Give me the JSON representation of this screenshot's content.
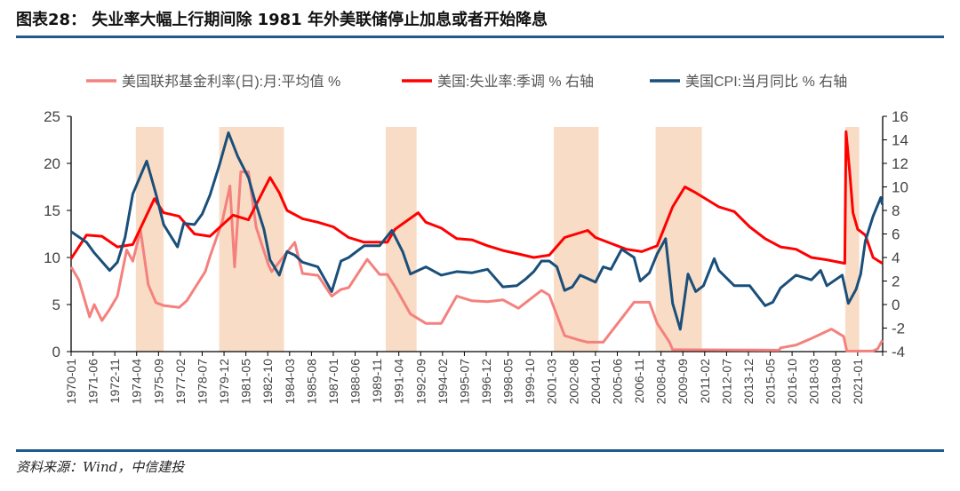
{
  "title": "图表28： 失业率大幅上行期间除 1981 年外美联储停止加息或者开始降息",
  "source": "资料来源：Wind，中信建投",
  "chart_data": {
    "type": "line",
    "title": "图表28： 失业率大幅上行期间除 1981 年外美联储停止加息或者开始降息",
    "x_range": [
      1970.0,
      2022.6
    ],
    "x_tick_labels": [
      "1970-01",
      "1971-06",
      "1972-11",
      "1974-04",
      "1975-09",
      "1977-02",
      "1978-07",
      "1979-12",
      "1981-05",
      "1982-10",
      "1984-03",
      "1985-08",
      "1987-01",
      "1988-06",
      "1989-11",
      "1991-04",
      "1992-09",
      "1994-02",
      "1995-07",
      "1996-12",
      "1998-05",
      "1999-10",
      "2001-03",
      "2002-08",
      "2004-01",
      "2005-06",
      "2006-11",
      "2008-04",
      "2009-09",
      "2011-02",
      "2012-07",
      "2013-12",
      "2015-05",
      "2016-10",
      "2018-03",
      "2019-08",
      "2021-01"
    ],
    "left_axis": {
      "ylim": [
        0,
        25
      ],
      "ticks": [
        "0",
        "5",
        "10",
        "15",
        "20",
        "25"
      ]
    },
    "right_axis": {
      "ylim": [
        -4,
        16
      ],
      "ticks": [
        "-4",
        "-2",
        "0",
        "2",
        "4",
        "6",
        "8",
        "10",
        "12",
        "14",
        "16"
      ]
    },
    "legend_position": "top-center",
    "shaded_periods": [
      [
        1974.2,
        1976.0
      ],
      [
        1979.6,
        1983.8
      ],
      [
        1990.4,
        1992.4
      ],
      [
        2001.3,
        2004.2
      ],
      [
        2007.9,
        2010.9
      ],
      [
        2020.2,
        2021.1
      ]
    ],
    "shade_color": "#f8dcc6",
    "series": [
      {
        "name": "美国联邦基金利率(日):月:平均值 %",
        "axis": "left",
        "color": "#f4817d",
        "points": [
          [
            1970,
            9.0
          ],
          [
            1970.5,
            7.6
          ],
          [
            1971.2,
            3.7
          ],
          [
            1971.5,
            5.0
          ],
          [
            1972,
            3.3
          ],
          [
            1972.5,
            4.5
          ],
          [
            1973,
            5.9
          ],
          [
            1973.6,
            10.8
          ],
          [
            1974,
            9.6
          ],
          [
            1974.5,
            12.9
          ],
          [
            1975,
            7.1
          ],
          [
            1975.5,
            5.2
          ],
          [
            1976,
            4.9
          ],
          [
            1977,
            4.7
          ],
          [
            1977.5,
            5.4
          ],
          [
            1978,
            6.7
          ],
          [
            1978.7,
            8.5
          ],
          [
            1979,
            10.1
          ],
          [
            1979.8,
            13.8
          ],
          [
            1980.3,
            17.6
          ],
          [
            1980.6,
            9.0
          ],
          [
            1981,
            19.1
          ],
          [
            1981.5,
            19.1
          ],
          [
            1982,
            13.2
          ],
          [
            1982.8,
            9.2
          ],
          [
            1983,
            8.5
          ],
          [
            1984.5,
            11.6
          ],
          [
            1985,
            8.3
          ],
          [
            1986,
            8.1
          ],
          [
            1986.9,
            5.9
          ],
          [
            1987.5,
            6.6
          ],
          [
            1988,
            6.8
          ],
          [
            1989.2,
            9.8
          ],
          [
            1990,
            8.2
          ],
          [
            1990.5,
            8.2
          ],
          [
            1991,
            6.9
          ],
          [
            1992,
            4.0
          ],
          [
            1993,
            3.0
          ],
          [
            1994,
            3.0
          ],
          [
            1995,
            5.9
          ],
          [
            1996,
            5.4
          ],
          [
            1997,
            5.3
          ],
          [
            1998,
            5.5
          ],
          [
            1999,
            4.6
          ],
          [
            2000.5,
            6.5
          ],
          [
            2001,
            6.0
          ],
          [
            2002,
            1.7
          ],
          [
            2003,
            1.2
          ],
          [
            2003.5,
            1.0
          ],
          [
            2004.5,
            1.0
          ],
          [
            2006.5,
            5.25
          ],
          [
            2007.5,
            5.25
          ],
          [
            2008,
            3.0
          ],
          [
            2008.8,
            1.0
          ],
          [
            2009,
            0.2
          ],
          [
            2015.9,
            0.15
          ],
          [
            2016,
            0.4
          ],
          [
            2017,
            0.7
          ],
          [
            2018,
            1.4
          ],
          [
            2019.3,
            2.4
          ],
          [
            2019.7,
            2.0
          ],
          [
            2020.1,
            1.6
          ],
          [
            2020.3,
            0.05
          ],
          [
            2022,
            0.08
          ],
          [
            2022.3,
            0.3
          ],
          [
            2022.6,
            1.2
          ]
        ]
      },
      {
        "name": "美国:失业率:季调 % 右轴",
        "axis": "right",
        "color": "#ff0000",
        "points": [
          [
            1970,
            3.9
          ],
          [
            1971,
            5.9
          ],
          [
            1972,
            5.8
          ],
          [
            1973,
            4.9
          ],
          [
            1974,
            5.1
          ],
          [
            1975.4,
            9.0
          ],
          [
            1976,
            7.8
          ],
          [
            1977,
            7.5
          ],
          [
            1978,
            6.0
          ],
          [
            1979,
            5.8
          ],
          [
            1980.5,
            7.6
          ],
          [
            1981.5,
            7.2
          ],
          [
            1982.9,
            10.8
          ],
          [
            1983.5,
            9.5
          ],
          [
            1984,
            8.0
          ],
          [
            1985,
            7.3
          ],
          [
            1986,
            7.0
          ],
          [
            1987,
            6.6
          ],
          [
            1988,
            5.7
          ],
          [
            1989,
            5.3
          ],
          [
            1990.5,
            5.3
          ],
          [
            1991,
            6.4
          ],
          [
            1992.5,
            7.8
          ],
          [
            1993,
            7.0
          ],
          [
            1994,
            6.5
          ],
          [
            1995,
            5.6
          ],
          [
            1996,
            5.5
          ],
          [
            1997,
            5.0
          ],
          [
            1998,
            4.6
          ],
          [
            1999,
            4.3
          ],
          [
            2000,
            4.0
          ],
          [
            2001,
            4.2
          ],
          [
            2002,
            5.7
          ],
          [
            2003.5,
            6.3
          ],
          [
            2004,
            5.7
          ],
          [
            2005,
            5.2
          ],
          [
            2006,
            4.7
          ],
          [
            2007,
            4.5
          ],
          [
            2008,
            5.0
          ],
          [
            2009,
            8.3
          ],
          [
            2009.8,
            10.0
          ],
          [
            2010.5,
            9.5
          ],
          [
            2011,
            9.1
          ],
          [
            2012,
            8.3
          ],
          [
            2013,
            7.9
          ],
          [
            2014,
            6.6
          ],
          [
            2015,
            5.6
          ],
          [
            2016,
            4.9
          ],
          [
            2017,
            4.7
          ],
          [
            2018,
            4.0
          ],
          [
            2019,
            3.8
          ],
          [
            2020.17,
            3.5
          ],
          [
            2020.25,
            14.7
          ],
          [
            2020.5,
            11.0
          ],
          [
            2020.7,
            7.8
          ],
          [
            2021,
            6.4
          ],
          [
            2021.5,
            5.9
          ],
          [
            2022,
            4.0
          ],
          [
            2022.6,
            3.5
          ]
        ]
      },
      {
        "name": "美国CPI:当月同比 % 右轴",
        "axis": "right",
        "color": "#1a4f7a",
        "points": [
          [
            1970,
            6.2
          ],
          [
            1971,
            5.3
          ],
          [
            1971.5,
            4.4
          ],
          [
            1972.5,
            2.9
          ],
          [
            1973,
            3.6
          ],
          [
            1973.5,
            5.7
          ],
          [
            1974,
            9.4
          ],
          [
            1974.9,
            12.2
          ],
          [
            1975.5,
            9.4
          ],
          [
            1976,
            6.8
          ],
          [
            1976.9,
            4.9
          ],
          [
            1977.3,
            6.9
          ],
          [
            1978,
            6.8
          ],
          [
            1978.5,
            7.7
          ],
          [
            1979,
            9.3
          ],
          [
            1979.6,
            11.8
          ],
          [
            1980.2,
            14.6
          ],
          [
            1980.8,
            12.6
          ],
          [
            1981.5,
            10.8
          ],
          [
            1981.9,
            8.9
          ],
          [
            1982.5,
            6.4
          ],
          [
            1982.9,
            3.8
          ],
          [
            1983.5,
            2.5
          ],
          [
            1984,
            4.5
          ],
          [
            1984.5,
            4.2
          ],
          [
            1985,
            3.6
          ],
          [
            1986,
            3.2
          ],
          [
            1986.9,
            1.1
          ],
          [
            1987.5,
            3.7
          ],
          [
            1988,
            4.0
          ],
          [
            1989,
            5.0
          ],
          [
            1990,
            5.0
          ],
          [
            1990.8,
            6.3
          ],
          [
            1991.5,
            4.5
          ],
          [
            1992,
            2.6
          ],
          [
            1993,
            3.2
          ],
          [
            1994,
            2.5
          ],
          [
            1995,
            2.8
          ],
          [
            1996,
            2.7
          ],
          [
            1997,
            3.0
          ],
          [
            1998,
            1.5
          ],
          [
            1998.9,
            1.6
          ],
          [
            1999.5,
            2.2
          ],
          [
            2000,
            2.8
          ],
          [
            2000.5,
            3.7
          ],
          [
            2001,
            3.7
          ],
          [
            2001.5,
            3.2
          ],
          [
            2002,
            1.2
          ],
          [
            2002.5,
            1.5
          ],
          [
            2003,
            2.5
          ],
          [
            2004,
            1.9
          ],
          [
            2004.5,
            3.2
          ],
          [
            2005,
            3.0
          ],
          [
            2005.7,
            4.7
          ],
          [
            2006.5,
            4.0
          ],
          [
            2006.9,
            2.0
          ],
          [
            2007.5,
            2.7
          ],
          [
            2008,
            4.3
          ],
          [
            2008.55,
            5.6
          ],
          [
            2009,
            0.1
          ],
          [
            2009.5,
            -2.1
          ],
          [
            2010,
            2.6
          ],
          [
            2010.5,
            1.1
          ],
          [
            2011,
            1.6
          ],
          [
            2011.7,
            3.9
          ],
          [
            2012,
            2.9
          ],
          [
            2013,
            1.6
          ],
          [
            2014,
            1.6
          ],
          [
            2015,
            -0.1
          ],
          [
            2015.5,
            0.2
          ],
          [
            2016,
            1.4
          ],
          [
            2017,
            2.5
          ],
          [
            2018,
            2.1
          ],
          [
            2018.6,
            2.9
          ],
          [
            2019,
            1.6
          ],
          [
            2020,
            2.5
          ],
          [
            2020.4,
            0.1
          ],
          [
            2020.9,
            1.3
          ],
          [
            2021.2,
            2.6
          ],
          [
            2021.5,
            5.4
          ],
          [
            2022,
            7.5
          ],
          [
            2022.5,
            9.1
          ],
          [
            2022.6,
            8.5
          ]
        ]
      }
    ]
  }
}
